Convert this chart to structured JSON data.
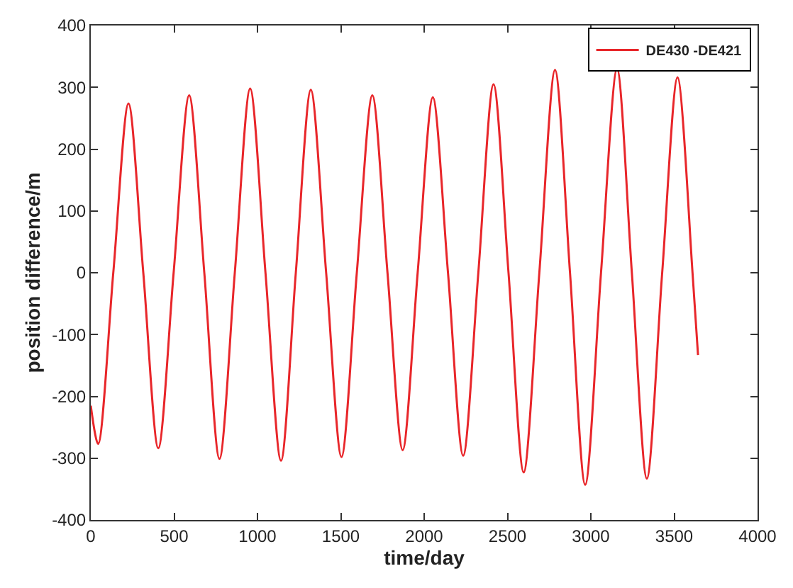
{
  "chart_data": {
    "type": "line",
    "xlabel": "time/day",
    "ylabel": "position difference/m",
    "xlim": [
      0,
      4000
    ],
    "ylim": [
      -400,
      400
    ],
    "xticks": [
      0,
      500,
      1000,
      1500,
      2000,
      2500,
      3000,
      3500,
      4000
    ],
    "yticks": [
      -400,
      -300,
      -200,
      -100,
      0,
      100,
      200,
      300,
      400
    ],
    "legend": "top right",
    "marker": "none",
    "line_style": "solid",
    "series": [
      {
        "name": "DE430 -DE421",
        "color": "#e8262a",
        "x": [
          0,
          44,
          135,
          226,
          315,
          405,
          497,
          590,
          681,
          772,
          864,
          956,
          1048,
          1141,
          1230,
          1320,
          1412,
          1504,
          1596,
          1689,
          1780,
          1871,
          1961,
          2052,
          2143,
          2234,
          2325,
          2416,
          2506,
          2597,
          2691,
          2785,
          2875,
          2966,
          3061,
          3157,
          3246,
          3336,
          3428,
          3520,
          3610,
          3643
        ],
        "values": [
          -215,
          -277,
          0,
          274,
          0,
          -284,
          0,
          287,
          0,
          -301,
          0,
          298,
          0,
          -304,
          0,
          296,
          0,
          -298,
          0,
          287,
          0,
          -287,
          0,
          284,
          0,
          -296,
          0,
          305,
          0,
          -323,
          0,
          328,
          0,
          -343,
          0,
          330,
          0,
          -333,
          0,
          316,
          0,
          -133
        ]
      }
    ]
  }
}
